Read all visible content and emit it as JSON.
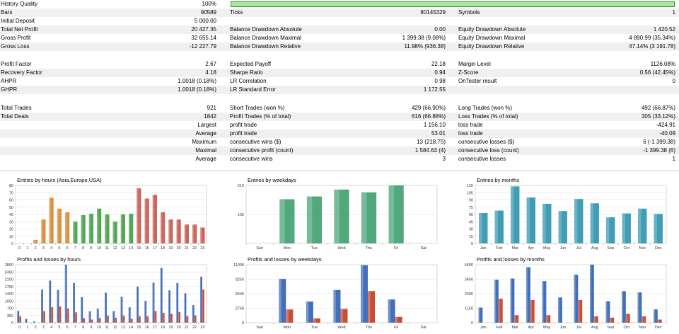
{
  "report": {
    "rows": [
      {
        "y": 0,
        "shade": false,
        "cells": [
          {
            "k": "c1",
            "t": "History Quality"
          },
          {
            "k": "v1",
            "t": "100%"
          }
        ]
      },
      {
        "y": 12,
        "shade": true,
        "cells": [
          {
            "k": "c1",
            "t": "Bars"
          },
          {
            "k": "v1",
            "t": "90589"
          },
          {
            "k": "c2",
            "t": "Ticks"
          },
          {
            "k": "v2",
            "t": "80145329"
          },
          {
            "k": "c3",
            "t": "Symbols"
          },
          {
            "k": "v3",
            "t": "1"
          }
        ]
      },
      {
        "y": 24,
        "shade": false,
        "cells": [
          {
            "k": "c1",
            "t": "Initial Deposit"
          },
          {
            "k": "v1",
            "t": "5 000.00"
          }
        ]
      },
      {
        "y": 36,
        "shade": true,
        "cells": [
          {
            "k": "c1",
            "t": "Total Net Profit"
          },
          {
            "k": "v1",
            "t": "20 427.35"
          },
          {
            "k": "c2",
            "t": "Balance Drawdown Absolute"
          },
          {
            "k": "v2",
            "t": "0.00"
          },
          {
            "k": "c3",
            "t": "Equity Drawdown Absolute"
          },
          {
            "k": "v3",
            "t": "1 420.52"
          }
        ]
      },
      {
        "y": 48,
        "shade": false,
        "cells": [
          {
            "k": "c1",
            "t": "Gross Profit"
          },
          {
            "k": "v1",
            "t": "32 655.14"
          },
          {
            "k": "c2",
            "t": "Balance Drawdown Maximal"
          },
          {
            "k": "v2",
            "t": "1 399.38 (9.08%)"
          },
          {
            "k": "c3",
            "t": "Equity Drawdown Maximal"
          },
          {
            "k": "v3",
            "t": "4 890.99 (35.34%)"
          }
        ]
      },
      {
        "y": 60,
        "shade": true,
        "cells": [
          {
            "k": "c1",
            "t": "Gross Loss"
          },
          {
            "k": "v1",
            "t": "-12 227.79"
          },
          {
            "k": "c2",
            "t": "Balance Drawdown Relative"
          },
          {
            "k": "v2",
            "t": "11.98% (936.38)"
          },
          {
            "k": "c3",
            "t": "Equity Drawdown Relative"
          },
          {
            "k": "v3",
            "t": "47.14% (3 191.78)"
          }
        ]
      },
      {
        "y": 85,
        "shade": false,
        "cells": [
          {
            "k": "c1",
            "t": "Profit Factor"
          },
          {
            "k": "v1",
            "t": "2.67"
          },
          {
            "k": "c2",
            "t": "Expected Payoff"
          },
          {
            "k": "v2",
            "t": "22.18"
          },
          {
            "k": "c3",
            "t": "Margin Level"
          },
          {
            "k": "v3",
            "t": "1126.08%"
          }
        ]
      },
      {
        "y": 97,
        "shade": true,
        "cells": [
          {
            "k": "c1",
            "t": "Recovery Factor"
          },
          {
            "k": "v1",
            "t": "4.18"
          },
          {
            "k": "c2",
            "t": "Sharpe Ratio"
          },
          {
            "k": "v2",
            "t": "0.94"
          },
          {
            "k": "c3",
            "t": "Z-Score"
          },
          {
            "k": "v3",
            "t": "0.56 (42.45%)"
          }
        ]
      },
      {
        "y": 109,
        "shade": false,
        "cells": [
          {
            "k": "c1",
            "t": "AHPR"
          },
          {
            "k": "v1",
            "t": "1.0018 (0.18%)"
          },
          {
            "k": "c2",
            "t": "LR Correlation"
          },
          {
            "k": "v2",
            "t": "0.98"
          },
          {
            "k": "c3",
            "t": "OnTester result"
          },
          {
            "k": "v3",
            "t": "0"
          }
        ]
      },
      {
        "y": 121,
        "shade": true,
        "cells": [
          {
            "k": "c1",
            "t": "GHPR"
          },
          {
            "k": "v1",
            "t": "1.0018 (0.18%)"
          },
          {
            "k": "c2",
            "t": "LR Standard Error"
          },
          {
            "k": "v2",
            "t": "1 172.55"
          }
        ]
      },
      {
        "y": 147,
        "shade": false,
        "cells": [
          {
            "k": "c1",
            "t": "Total Trades"
          },
          {
            "k": "v1",
            "t": "921"
          },
          {
            "k": "c2",
            "t": "Short Trades (won %)"
          },
          {
            "k": "v2",
            "t": "429 (66.90%)"
          },
          {
            "k": "c3",
            "t": "Long Trades (won %)"
          },
          {
            "k": "v3",
            "t": "492 (66.87%)"
          }
        ]
      },
      {
        "y": 159,
        "shade": true,
        "cells": [
          {
            "k": "c1",
            "t": "Total Deals"
          },
          {
            "k": "v1",
            "t": "1842"
          },
          {
            "k": "c2",
            "t": "Profit Trades (% of total)"
          },
          {
            "k": "v2",
            "t": "616 (66.88%)"
          },
          {
            "k": "c3",
            "t": "Loss Trades (% of total)"
          },
          {
            "k": "v3",
            "t": "305 (33.12%)"
          }
        ]
      },
      {
        "y": 171,
        "shade": false,
        "cells": [
          {
            "k": "v1",
            "t": "Largest"
          },
          {
            "k": "c2",
            "t": "profit trade"
          },
          {
            "k": "v2",
            "t": "1 156.10"
          },
          {
            "k": "c3",
            "t": "loss trade"
          },
          {
            "k": "v3",
            "t": "-424.91"
          }
        ]
      },
      {
        "y": 183,
        "shade": true,
        "cells": [
          {
            "k": "v1",
            "t": "Average"
          },
          {
            "k": "c2",
            "t": "profit trade"
          },
          {
            "k": "v2",
            "t": "53.01"
          },
          {
            "k": "c3",
            "t": "loss trade"
          },
          {
            "k": "v3",
            "t": "-40.09"
          }
        ]
      },
      {
        "y": 195,
        "shade": false,
        "cells": [
          {
            "k": "v1",
            "t": "Maximum"
          },
          {
            "k": "c2",
            "t": "consecutive wins ($)"
          },
          {
            "k": "v2",
            "t": "13 (218.75)"
          },
          {
            "k": "c3",
            "t": "consecutive losses ($)"
          },
          {
            "k": "v3",
            "t": "6 (-1 399.38)"
          }
        ]
      },
      {
        "y": 207,
        "shade": true,
        "cells": [
          {
            "k": "v1",
            "t": "Maximal"
          },
          {
            "k": "c2",
            "t": "consecutive profit (count)"
          },
          {
            "k": "v2",
            "t": "1 584.63 (4)"
          },
          {
            "k": "c3",
            "t": "consecutive loss (count)"
          },
          {
            "k": "v3",
            "t": "-1 399.38 (6)"
          }
        ]
      },
      {
        "y": 219,
        "shade": false,
        "cells": [
          {
            "k": "v1",
            "t": "Average"
          },
          {
            "k": "c2",
            "t": "consecutive wins"
          },
          {
            "k": "v2",
            "t": "3"
          },
          {
            "k": "c3",
            "t": "consecutive losses"
          },
          {
            "k": "v3",
            "t": "1"
          }
        ]
      }
    ],
    "history_quality_value": 100
  },
  "colors": {
    "orange": "#d9822b",
    "green": "#3f9b3f",
    "red": "#c4534a",
    "weekday_green": "#3f9f6f",
    "month_teal": "#2a93ad",
    "blue": "#2f5fb3",
    "loss_red": "#c23a1c",
    "quality_bar": "#a6e99a"
  },
  "chart_data": [
    {
      "id": "entries-hours",
      "type": "bar",
      "title": "Entries by hours (Asia,Europe,USA)",
      "categories": [
        "0",
        "1",
        "2",
        "3",
        "4",
        "5",
        "6",
        "7",
        "8",
        "9",
        "10",
        "11",
        "12",
        "13",
        "14",
        "15",
        "16",
        "17",
        "18",
        "19",
        "20",
        "21",
        "22",
        "23"
      ],
      "values": [
        0,
        0,
        5,
        33,
        63,
        48,
        43,
        30,
        39,
        41,
        48,
        40,
        30,
        40,
        41,
        76,
        62,
        67,
        43,
        33,
        33,
        26,
        26,
        22
      ],
      "ylim": [
        0,
        80
      ],
      "yticks": [
        0,
        10,
        20,
        30,
        40,
        50,
        60,
        70,
        80
      ],
      "bar_colors_by_session": [
        "orange",
        "orange",
        "orange",
        "orange",
        "orange",
        "orange",
        "orange",
        "green",
        "green",
        "green",
        "green",
        "green",
        "green",
        "green",
        "green",
        "red",
        "red",
        "red",
        "red",
        "red",
        "red",
        "red",
        "red",
        "red"
      ]
    },
    {
      "id": "entries-weekdays",
      "type": "bar",
      "title": "Entries by weekdays",
      "categories": [
        "Sun",
        "Mon",
        "Tue",
        "Wed",
        "Thu",
        "Fri",
        "Sat"
      ],
      "values": [
        0,
        160,
        170,
        195,
        185,
        210,
        0
      ],
      "ylim": [
        0,
        210
      ],
      "yticks": [
        105,
        210
      ]
    },
    {
      "id": "entries-months",
      "type": "bar",
      "title": "Entries by months",
      "categories": [
        "Jan",
        "Feb",
        "Mar",
        "Apr",
        "May",
        "Jun",
        "Jul",
        "Aug",
        "Sep",
        "Oct",
        "Nov",
        "Dec"
      ],
      "values": [
        63,
        68,
        118,
        95,
        82,
        67,
        92,
        83,
        54,
        62,
        72,
        61
      ],
      "ylim": [
        0,
        120
      ],
      "yticks": [
        0,
        15,
        30,
        45,
        60,
        75,
        90,
        105,
        120
      ]
    },
    {
      "id": "pl-hours",
      "type": "bar",
      "title": "Profits and losses by hours",
      "categories": [
        "0",
        "1",
        "2",
        "3",
        "4",
        "5",
        "6",
        "7",
        "8",
        "9",
        "10",
        "11",
        "12",
        "13",
        "14",
        "15",
        "16",
        "17",
        "18",
        "19",
        "20",
        "21",
        "22",
        "23"
      ],
      "series": [
        {
          "color": "blue",
          "values": [
            560,
            180,
            60,
            1600,
            2030,
            1580,
            2800,
            1920,
            1230,
            550,
            670,
            1450,
            560,
            1250,
            740,
            1740,
            1050,
            1930,
            2640,
            1560,
            1920,
            1420,
            850,
            2220
          ]
        },
        {
          "color": "loss_red",
          "values": [
            300,
            0,
            0,
            560,
            750,
            780,
            680,
            500,
            220,
            150,
            230,
            340,
            240,
            340,
            180,
            300,
            300,
            560,
            480,
            430,
            520,
            310,
            350,
            1600
          ]
        }
      ],
      "ylim": [
        0,
        2800
      ],
      "yticks": [
        0,
        350,
        700,
        1050,
        1400,
        1750,
        2100,
        2450,
        2800
      ]
    },
    {
      "id": "pl-weekdays",
      "type": "bar",
      "title": "Profits and losses by weekdays",
      "categories": [
        "Sun",
        "Mon",
        "Tue",
        "Wed",
        "Thu",
        "Fri",
        "Sat"
      ],
      "series": [
        {
          "color": "blue",
          "values": [
            0,
            8300,
            4000,
            6200,
            10900,
            4400,
            0
          ]
        },
        {
          "color": "loss_red",
          "values": [
            0,
            2500,
            800,
            2600,
            6000,
            1100,
            0
          ]
        }
      ],
      "ylim": [
        0,
        11000
      ],
      "yticks": [
        0,
        2750,
        5500,
        8250,
        11000
      ]
    },
    {
      "id": "pl-months",
      "type": "bar",
      "title": "Profits and losses by months",
      "categories": [
        "Jan",
        "Feb",
        "Mar",
        "Apr",
        "May",
        "Jun",
        "Jul",
        "Aug",
        "Sep",
        "Oct",
        "Nov",
        "Dec"
      ],
      "series": [
        {
          "color": "blue",
          "values": [
            1200,
            3400,
            3500,
            4400,
            3300,
            2000,
            3800,
            4600,
            1700,
            2500,
            2400,
            1050
          ]
        },
        {
          "color": "loss_red",
          "values": [
            0,
            1900,
            600,
            1800,
            600,
            0,
            1800,
            500,
            400,
            700,
            500,
            250
          ]
        }
      ],
      "ylim": [
        0,
        4600
      ],
      "yticks": [
        0,
        1150,
        2300,
        3450,
        4600
      ]
    }
  ]
}
